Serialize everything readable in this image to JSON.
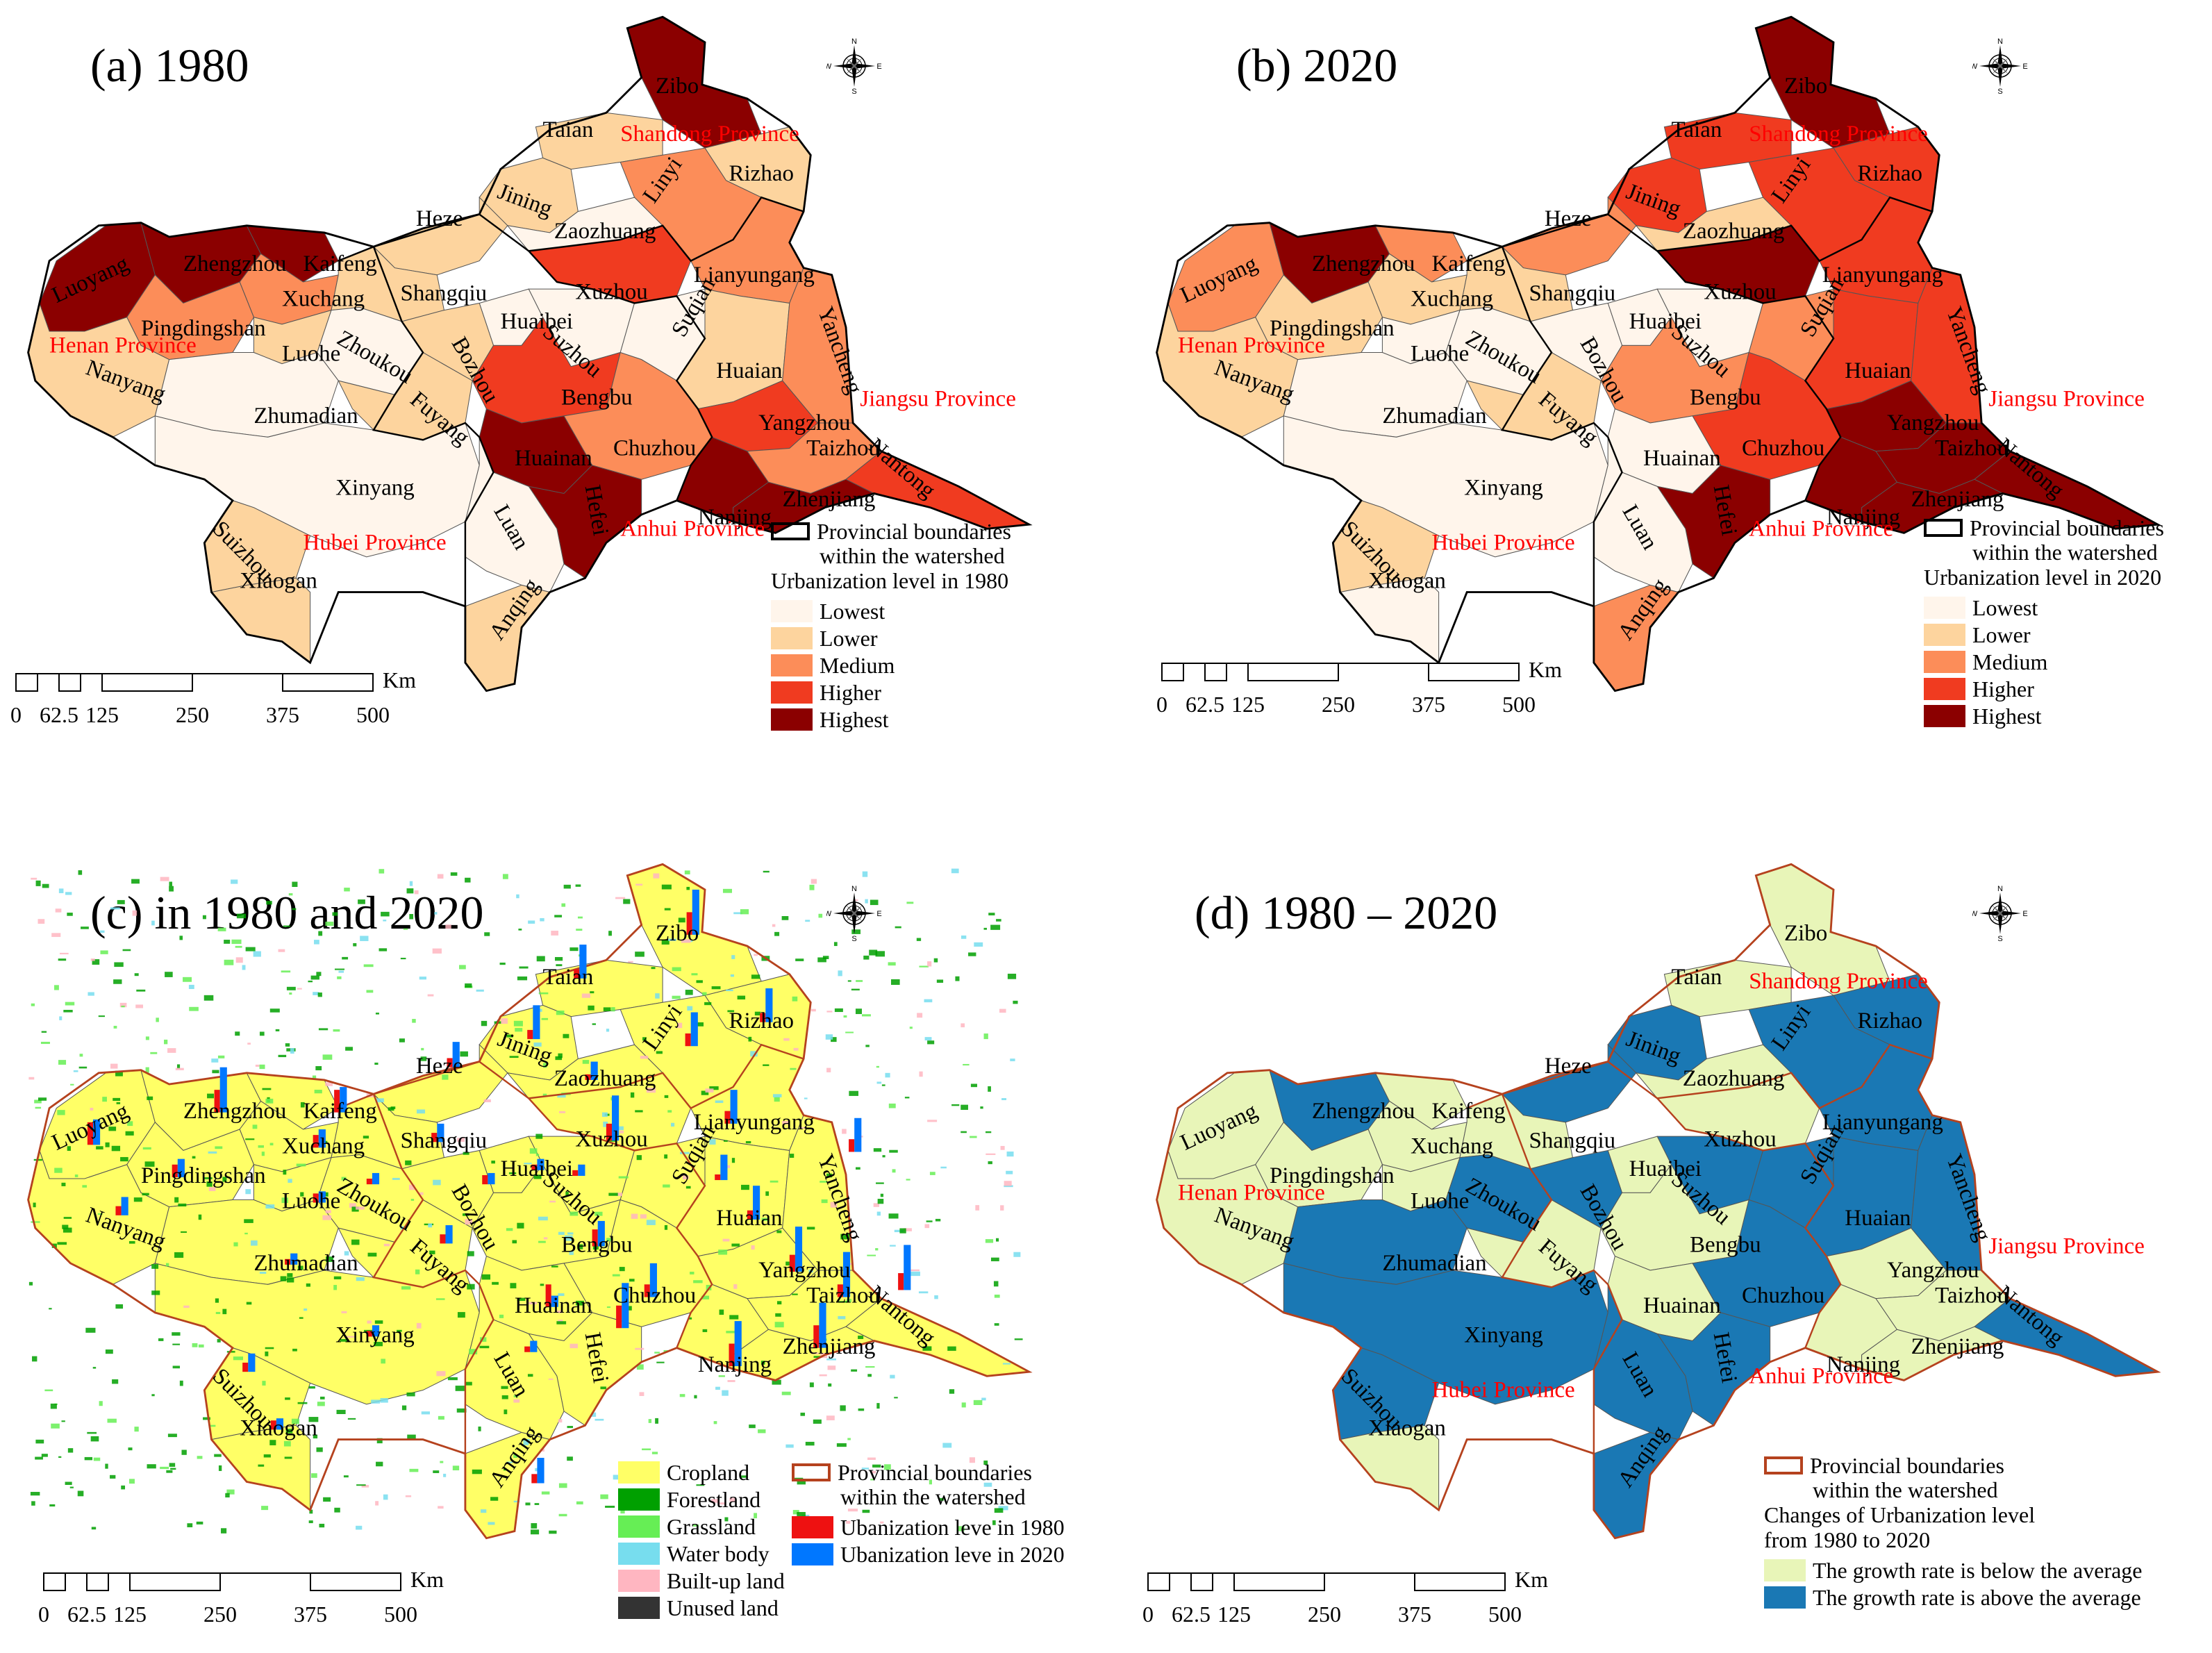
{
  "panels": [
    {
      "id": "a",
      "title": "(a) 1980",
      "legend_title": "Urbanization level in 1980",
      "legend": [
        {
          "label": "Lowest",
          "color": "#fff5eb"
        },
        {
          "label": "Lower",
          "color": "#fdd49e"
        },
        {
          "label": "Medium",
          "color": "#fc8d59"
        },
        {
          "label": "Higher",
          "color": "#f03b20"
        },
        {
          "label": "Highest",
          "color": "#8b0000"
        }
      ]
    },
    {
      "id": "b",
      "title": "(b) 2020",
      "legend_title": "Urbanization level in 2020",
      "legend": [
        {
          "label": "Lowest",
          "color": "#fff5eb"
        },
        {
          "label": "Lower",
          "color": "#fdd49e"
        },
        {
          "label": "Medium",
          "color": "#fc8d59"
        },
        {
          "label": "Higher",
          "color": "#f03b20"
        },
        {
          "label": "Highest",
          "color": "#8b0000"
        }
      ]
    },
    {
      "id": "c",
      "title": "(c) in 1980 and 2020",
      "legend_landuse": [
        {
          "label": "Cropland",
          "color": "#ffff66"
        },
        {
          "label": "Forestland",
          "color": "#00a000"
        },
        {
          "label": "Grassland",
          "color": "#66ee55"
        },
        {
          "label": "Water body",
          "color": "#77ddee"
        },
        {
          "label": "Built-up land",
          "color": "#ffb6c1"
        },
        {
          "label": "Unused land",
          "color": "#333333"
        }
      ],
      "legend_bars": [
        {
          "label": "Ubanization leve in 1980",
          "color": "#ee1111"
        },
        {
          "label": "Ubanization leve in 2020",
          "color": "#0077ff"
        }
      ]
    },
    {
      "id": "d",
      "title": "(d) 1980 – 2020",
      "legend_title_1": "Changes of Urbanization level",
      "legend_title_2": "from 1980 to 2020",
      "legend": [
        {
          "label": "The growth rate is below  the average",
          "color": "#e8f5b8"
        },
        {
          "label": "The growth rate is above the average",
          "color": "#1a78b4"
        }
      ]
    }
  ],
  "boundary_label_1": "Provincial boundaries",
  "boundary_label_2": "within the watershed",
  "provinces": [
    "Shandong Province",
    "Henan Province",
    "Jiangsu Province",
    "Anhui Province",
    "Hubei Province"
  ],
  "cities": [
    "Zibo",
    "Taian",
    "Rizhao",
    "Jining",
    "Linyi",
    "Heze",
    "Zaozhuang",
    "Luoyang",
    "Zhengzhou",
    "Kaifeng",
    "Xuchang",
    "Shangqiu",
    "Lianyungang",
    "Pingdingshan",
    "Luohe",
    "Zhoukou",
    "Huaibei",
    "Xuzhou",
    "Bozhou",
    "Suzhou",
    "Suqian",
    "Huaian",
    "Yancheng",
    "Nanyang",
    "Zhumadian",
    "Fuyang",
    "Bengbu",
    "Yangzhou",
    "Taizhou",
    "Chuzhou",
    "Huainan",
    "Nantong",
    "Xinyang",
    "Hefei",
    "Nanjing",
    "Zhenjiang",
    "Luan",
    "Suizhou",
    "Xiaogan",
    "Anqing"
  ],
  "city_levels": {
    "1980": [
      "highest",
      "lower",
      "lower",
      "lower",
      "medium",
      "lower",
      "lowest",
      "highest",
      "highest",
      "highest",
      "medium",
      "lower",
      "medium",
      "medium",
      "lower",
      "lowest",
      "lowest",
      "higher",
      "lower",
      "lowest",
      "lowest",
      "lower",
      "medium",
      "lower",
      "lowest",
      "lower",
      "higher",
      "higher",
      "medium",
      "medium",
      "highest",
      "higher",
      "lowest",
      "highest",
      "highest",
      "highest",
      "lowest",
      "lower",
      "lower",
      "lower"
    ],
    "2020": [
      "highest",
      "higher",
      "higher",
      "higher",
      "higher",
      "medium",
      "lower",
      "medium",
      "highest",
      "medium",
      "lower",
      "lower",
      "higher",
      "lower",
      "lowest",
      "lowest",
      "lowest",
      "highest",
      "lowest",
      "lowest",
      "medium",
      "higher",
      "higher",
      "lower",
      "lowest",
      "lower",
      "medium",
      "highest",
      "highest",
      "higher",
      "lowest",
      "highest",
      "lowest",
      "highest",
      "highest",
      "highest",
      "lowest",
      "lower",
      "lowest",
      "medium"
    ]
  },
  "growth": [
    "below",
    "below",
    "above",
    "above",
    "above",
    "above",
    "below",
    "below",
    "above",
    "below",
    "below",
    "below",
    "above",
    "below",
    "below",
    "above",
    "below",
    "below",
    "above",
    "above",
    "above",
    "above",
    "above",
    "below",
    "above",
    "below",
    "below",
    "below",
    "below",
    "above",
    "below",
    "above",
    "above",
    "above",
    "below",
    "below",
    "above",
    "above",
    "below",
    "above"
  ],
  "scale": {
    "unit": "Km",
    "ticks": [
      "0",
      "62.5",
      "125",
      "250",
      "375",
      "500"
    ]
  },
  "compass": {
    "N": "N",
    "S": "S",
    "E": "E",
    "W": "W"
  }
}
